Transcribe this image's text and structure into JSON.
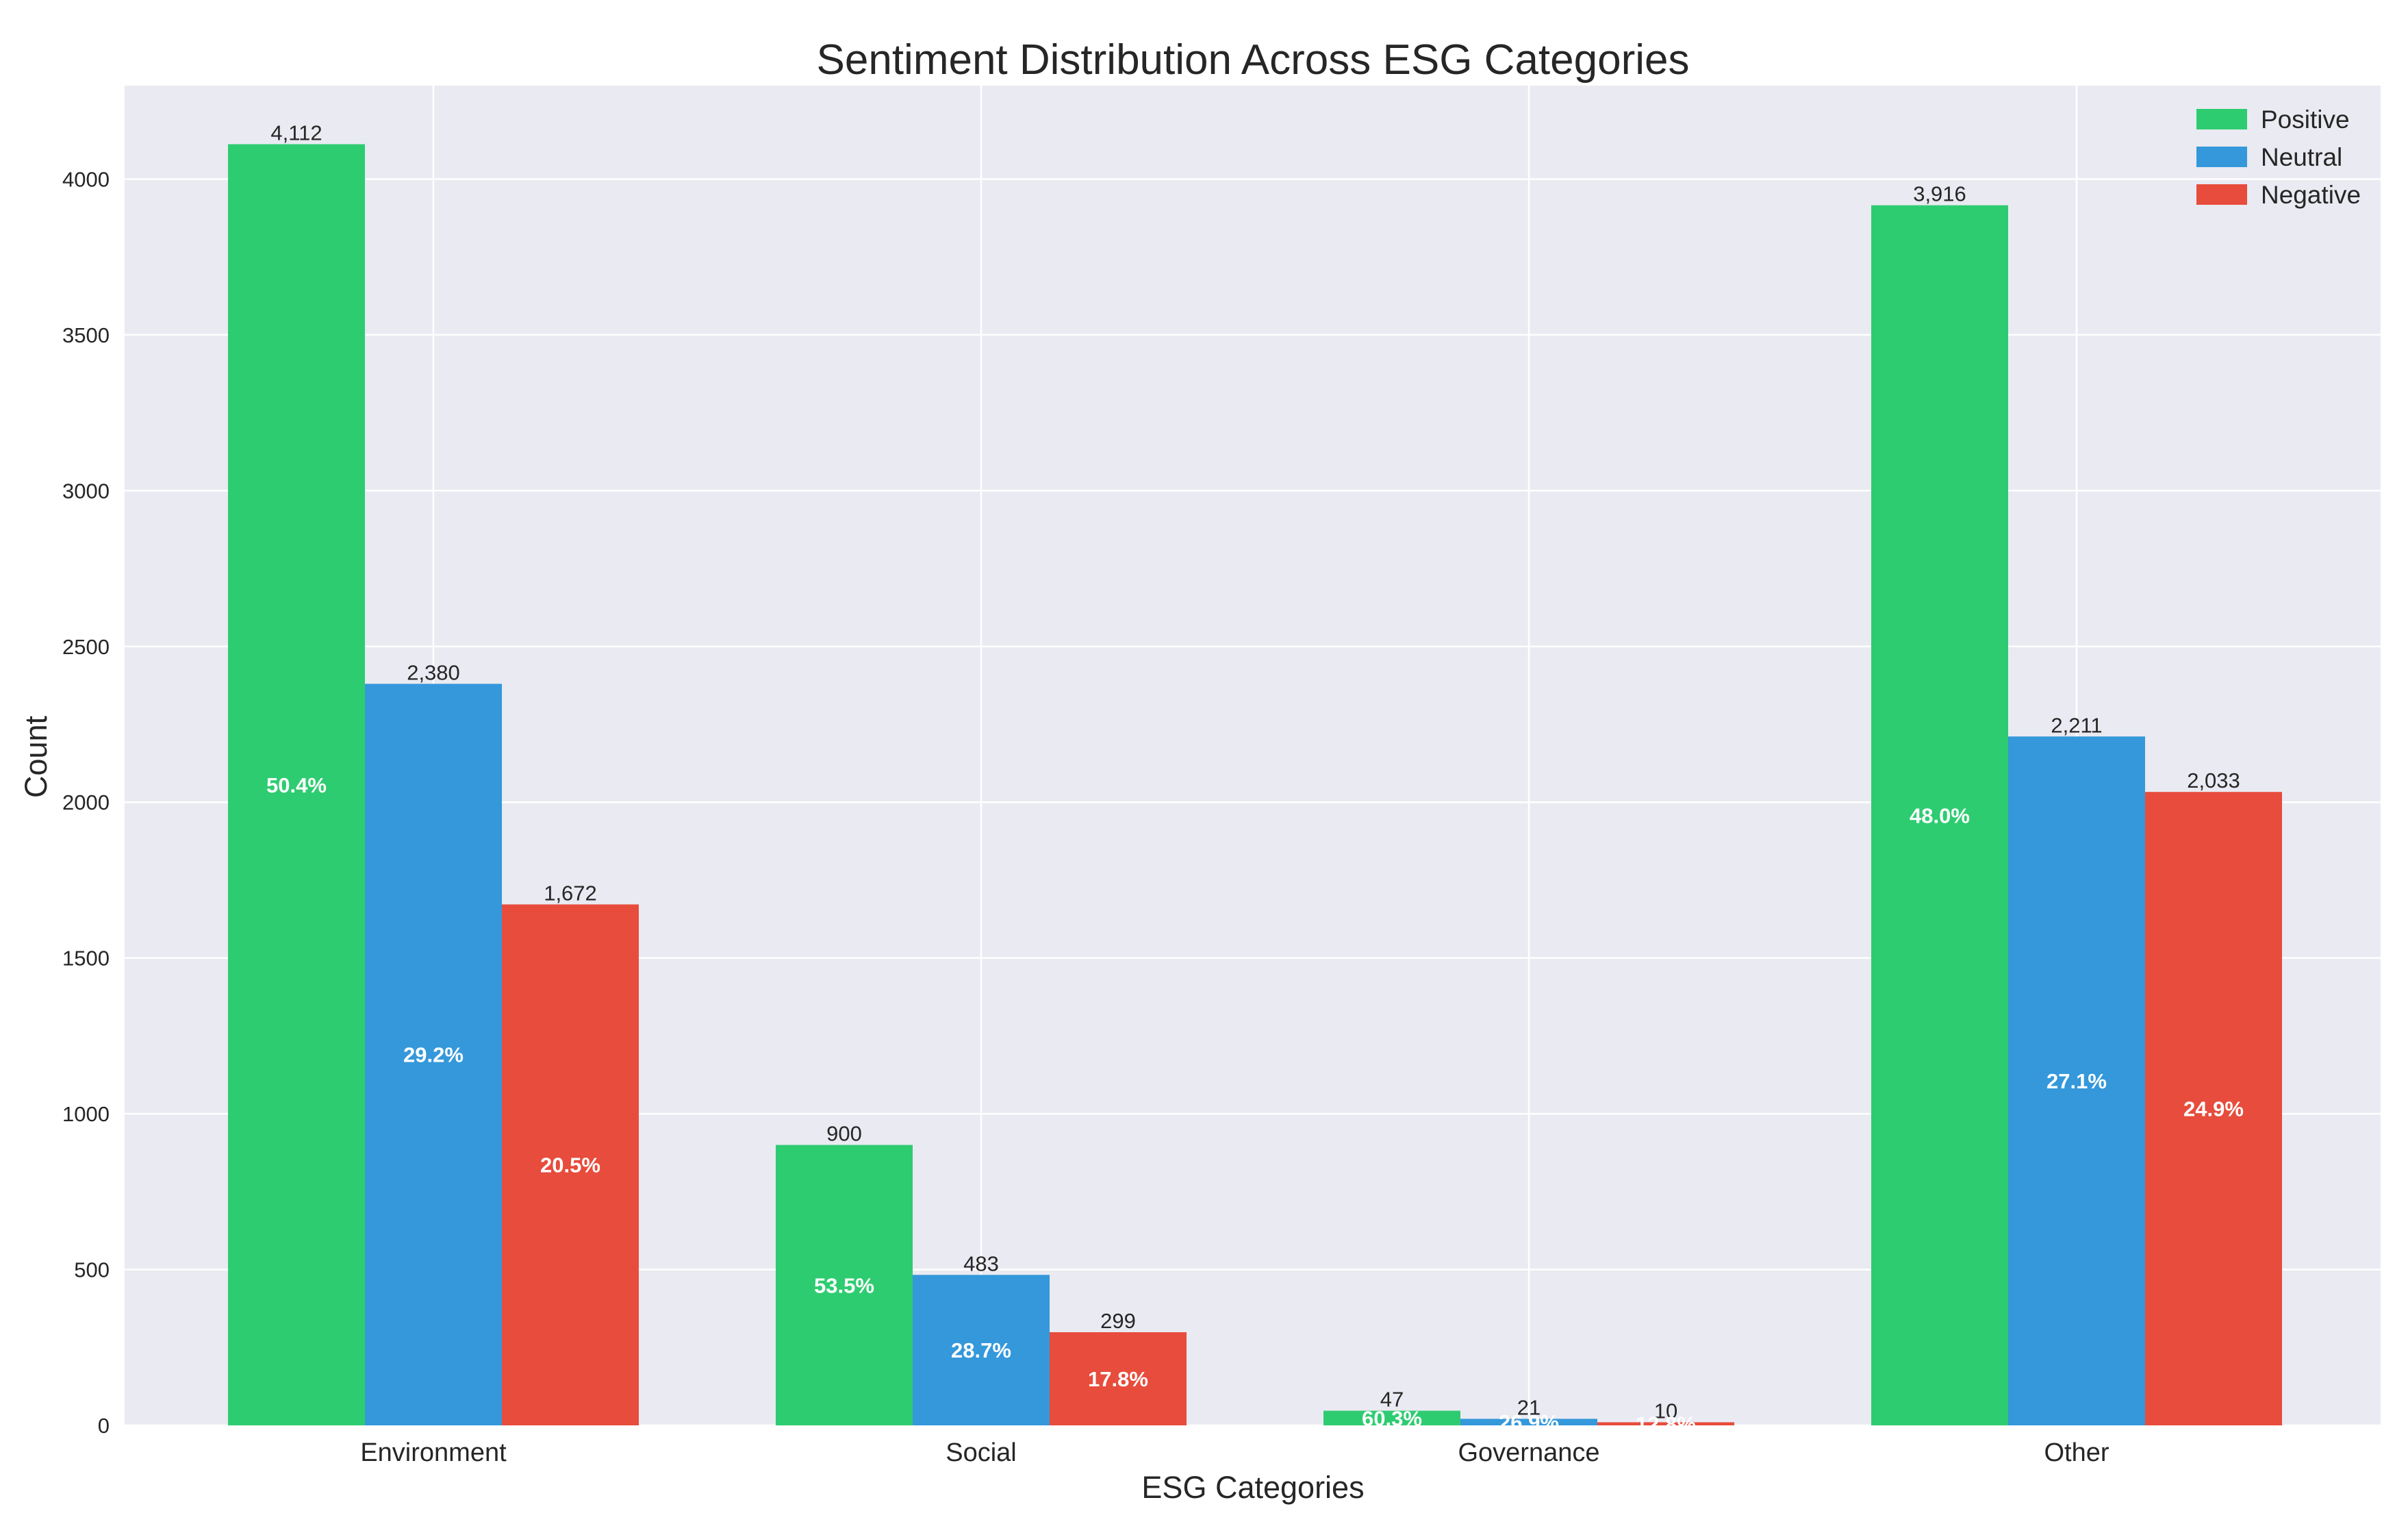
{
  "chart_data": {
    "type": "bar",
    "title": "Sentiment Distribution Across ESG Categories",
    "xlabel": "ESG Categories",
    "ylabel": "Count",
    "categories": [
      "Environment",
      "Social",
      "Governance",
      "Other"
    ],
    "series": [
      {
        "name": "Positive",
        "color": "#2ecc71",
        "values": [
          4112,
          900,
          47,
          3916
        ],
        "value_labels": [
          "4,112",
          "900",
          "47",
          "3,916"
        ],
        "pct_labels": [
          "50.4%",
          "53.5%",
          "60.3%",
          "48.0%"
        ]
      },
      {
        "name": "Neutral",
        "color": "#3498db",
        "values": [
          2380,
          483,
          21,
          2211
        ],
        "value_labels": [
          "2,380",
          "483",
          "21",
          "2,211"
        ],
        "pct_labels": [
          "29.2%",
          "28.7%",
          "26.9%",
          "27.1%"
        ]
      },
      {
        "name": "Negative",
        "color": "#e74c3c",
        "values": [
          1672,
          299,
          10,
          2033
        ],
        "value_labels": [
          "1,672",
          "299",
          "10",
          "2,033"
        ],
        "pct_labels": [
          "20.5%",
          "17.8%",
          "12.8%",
          "24.9%"
        ]
      }
    ],
    "ylim": [
      0,
      4300
    ],
    "yticks": [
      0,
      500,
      1000,
      1500,
      2000,
      2500,
      3000,
      3500,
      4000
    ],
    "grid": true,
    "legend_position": "top-right",
    "plot_background": "#eaeaf2",
    "grid_color": "#ffffff"
  }
}
